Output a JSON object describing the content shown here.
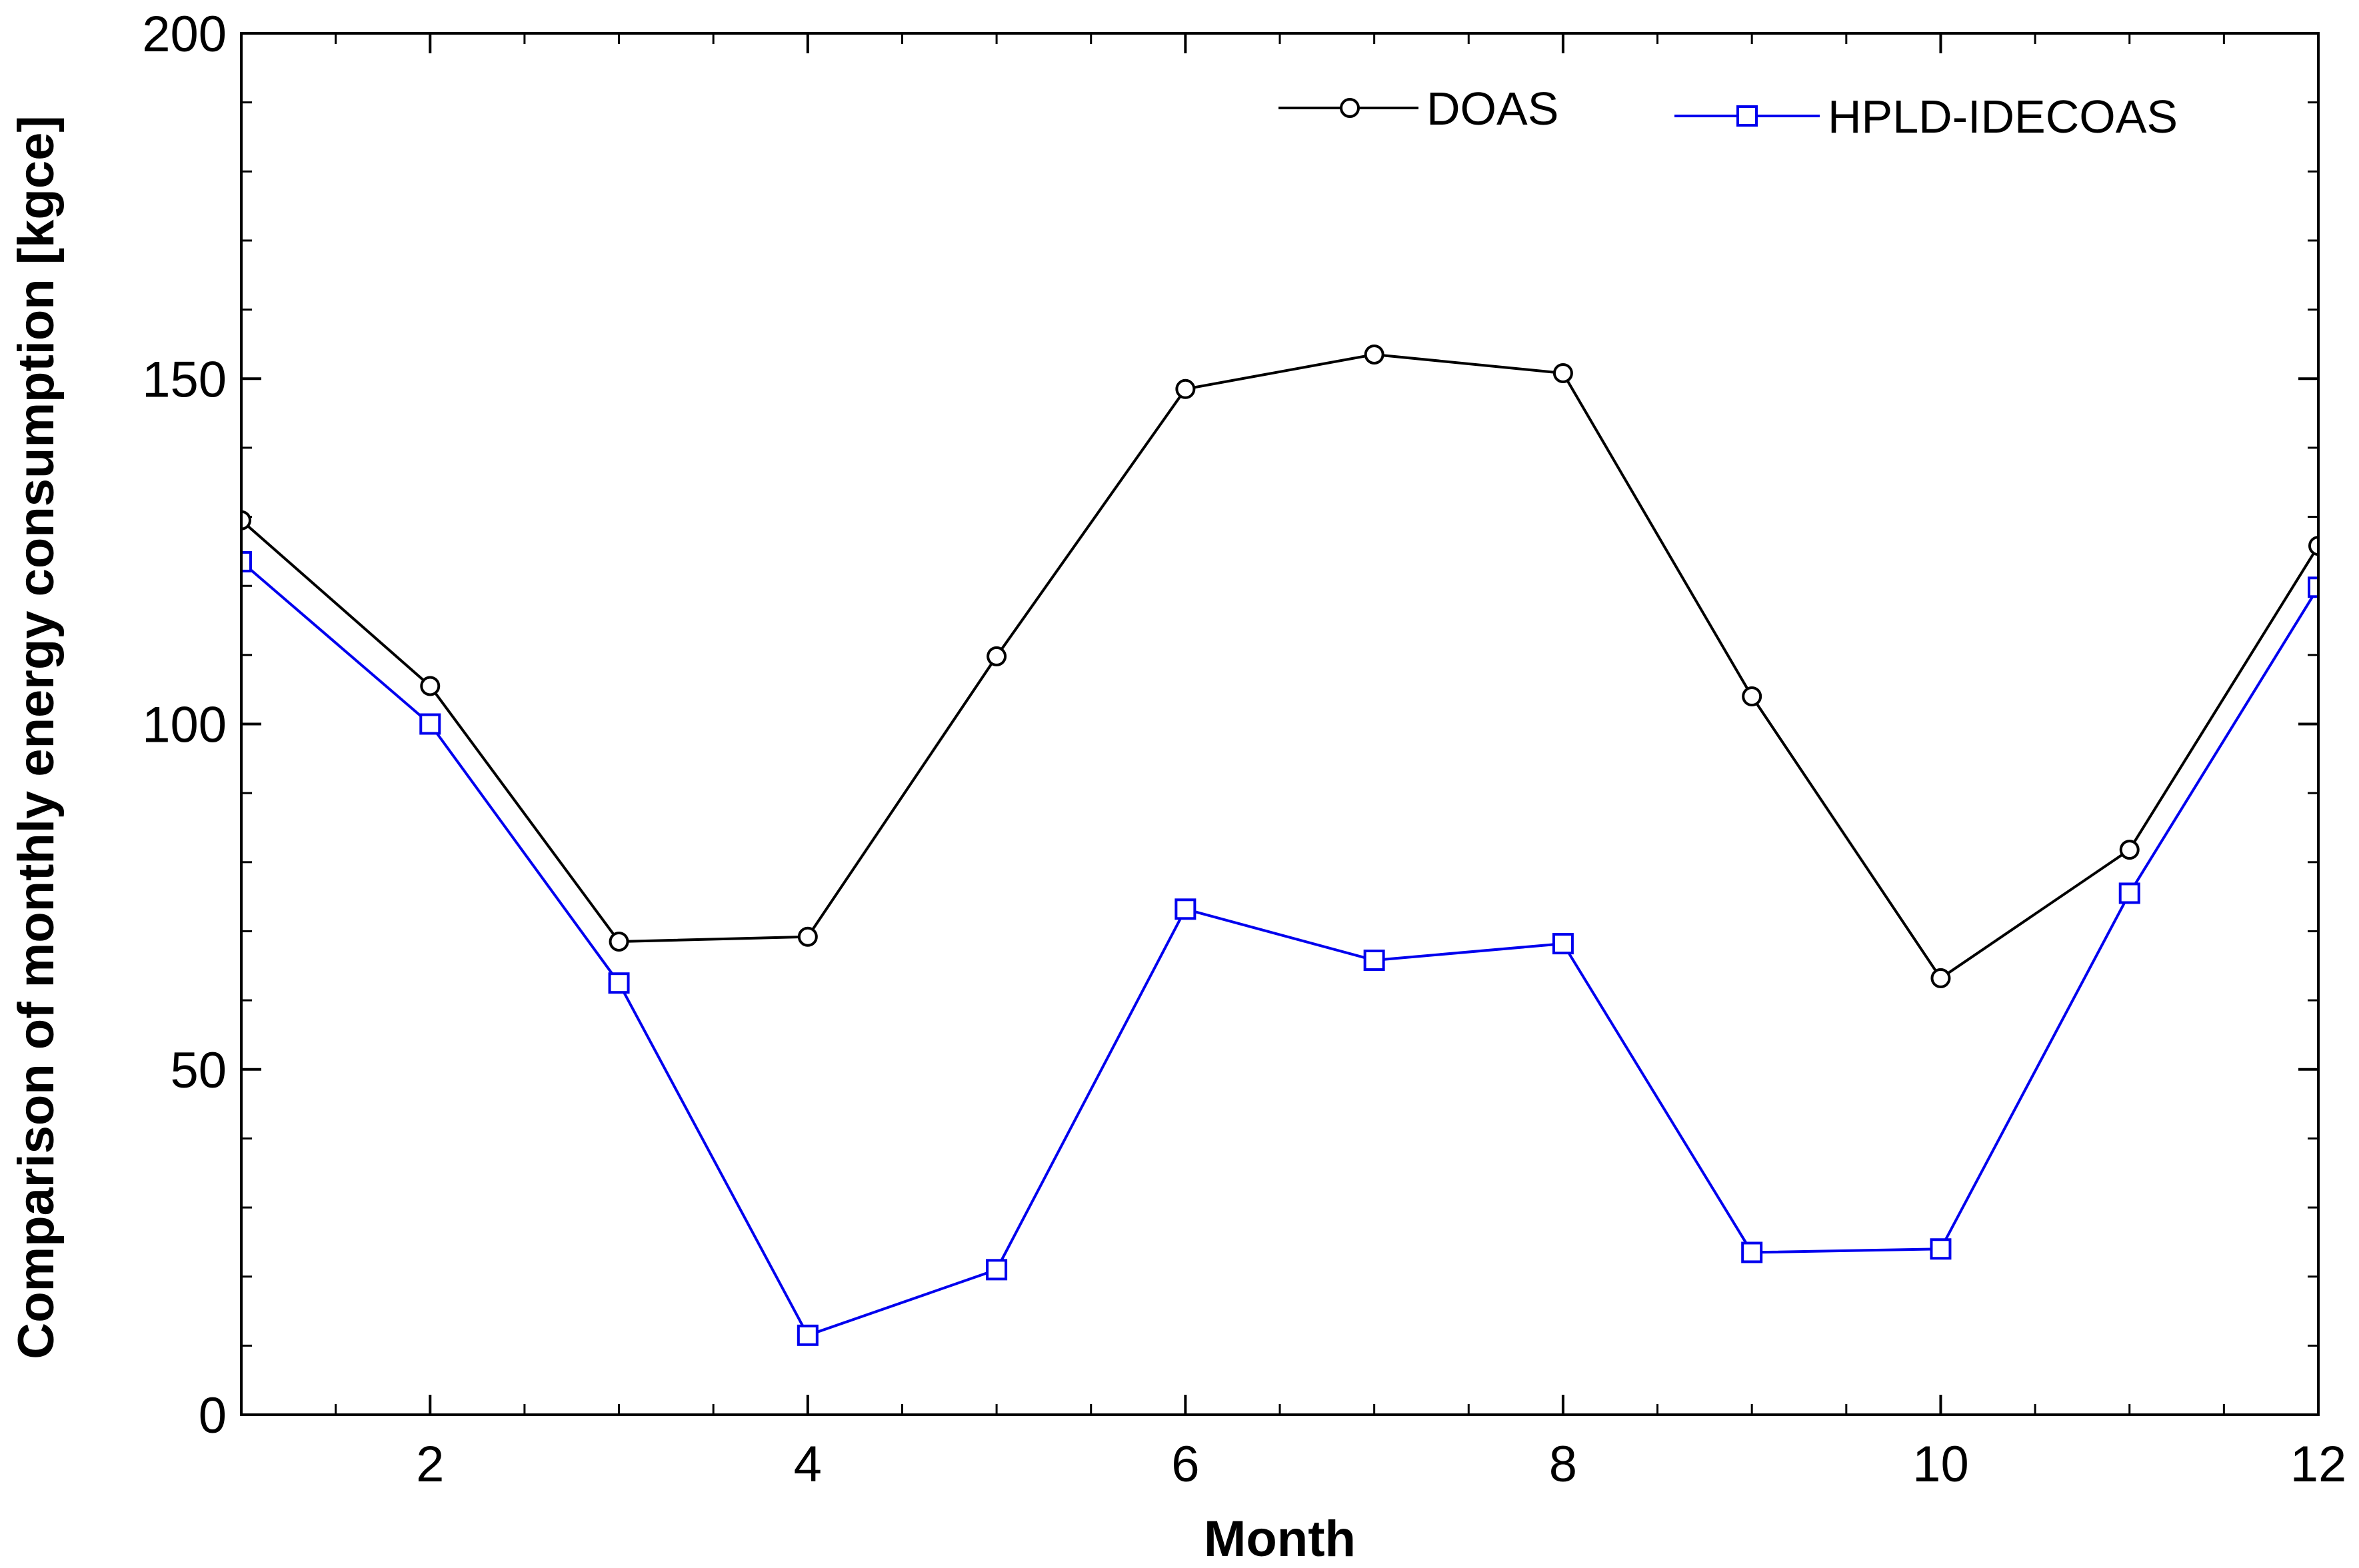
{
  "chart_data": {
    "type": "line",
    "title": "",
    "xlabel": "Month",
    "ylabel": "Comparison of monthly energy consumption [kgce]",
    "xlim": [
      1,
      12
    ],
    "ylim": [
      0,
      200
    ],
    "x_major_ticks": [
      2,
      4,
      6,
      8,
      10,
      12
    ],
    "x_minor_step": 0.5,
    "y_major_ticks": [
      0,
      50,
      100,
      150,
      200
    ],
    "y_minor_step": 10,
    "grid": false,
    "legend_position": "top-right",
    "x": [
      1,
      2,
      3,
      4,
      5,
      6,
      7,
      8,
      9,
      10,
      11,
      12
    ],
    "series": [
      {
        "name": "DOAS",
        "color": "#000000",
        "marker": "circle",
        "values": [
          129.5,
          105.5,
          68.5,
          69.2,
          109.8,
          148.5,
          153.5,
          150.8,
          104.0,
          63.2,
          81.8,
          125.8
        ]
      },
      {
        "name": "HPLD-IDECOAS",
        "color": "#0000ee",
        "marker": "square",
        "values": [
          123.5,
          100.0,
          62.5,
          11.5,
          21.0,
          73.2,
          65.8,
          68.2,
          23.5,
          24.0,
          75.5,
          119.8
        ]
      }
    ]
  }
}
